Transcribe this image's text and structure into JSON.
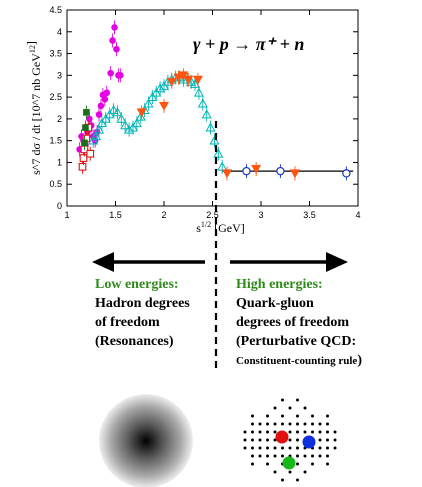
{
  "chart_data": {
    "type": "scatter",
    "xlabel": "s^{1/2} [GeV]",
    "ylabel": "s^7 dσ / dt [10^7 nb GeV^{12}]",
    "annotation": "γ + p → π⁺ + n",
    "xlim": [
      1,
      4
    ],
    "ylim": [
      0,
      4.5
    ],
    "xticks": [
      "1",
      "1.5",
      "2",
      "2.5",
      "3",
      "3.5",
      "4"
    ],
    "yticks": [
      "0",
      "0.5",
      "1",
      "1.5",
      "2",
      "2.5",
      "3",
      "3.5",
      "4",
      "4.5"
    ],
    "grid": false,
    "divider_x": 2.6,
    "fit_line": {
      "x": [
        2.6,
        3.95
      ],
      "y": [
        0.8,
        0.8
      ]
    },
    "series": [
      {
        "marker": "filled-circle",
        "color": "#e600e6",
        "x": [
          1.13,
          1.15,
          1.17,
          1.19,
          1.21,
          1.23,
          1.25,
          1.27,
          1.29,
          1.31,
          1.33,
          1.35,
          1.37,
          1.39,
          1.41,
          1.45,
          1.47,
          1.49,
          1.51,
          1.53,
          1.55
        ],
        "y": [
          1.3,
          1.6,
          1.5,
          1.4,
          1.7,
          2.0,
          1.85,
          1.6,
          1.5,
          1.7,
          2.1,
          2.3,
          2.55,
          2.45,
          2.6,
          3.05,
          3.8,
          4.1,
          3.6,
          3.0,
          3.0
        ]
      },
      {
        "marker": "open-square",
        "color": "#dd1111",
        "x": [
          1.16,
          1.17,
          1.18,
          1.2,
          1.22,
          1.24
        ],
        "y": [
          0.9,
          1.1,
          1.3,
          1.55,
          1.8,
          1.2
        ]
      },
      {
        "marker": "filled-square",
        "color": "#1a6e1a",
        "x": [
          1.18,
          1.19,
          1.2
        ],
        "y": [
          1.45,
          1.8,
          2.15
        ]
      },
      {
        "marker": "open-triangle",
        "color": "#00b5b5",
        "x": [
          1.27,
          1.3,
          1.33,
          1.36,
          1.4,
          1.44,
          1.48,
          1.52,
          1.56,
          1.6,
          1.64,
          1.68,
          1.72,
          1.76,
          1.8,
          1.84,
          1.88,
          1.92,
          1.96,
          2.0,
          2.04,
          2.08,
          2.12,
          2.16,
          2.2,
          2.24,
          2.28,
          2.32,
          2.36,
          2.4,
          2.44,
          2.48,
          2.52,
          2.56,
          2.6
        ],
        "y": [
          1.5,
          1.6,
          1.75,
          1.9,
          2.0,
          2.1,
          2.2,
          2.15,
          2.0,
          1.85,
          1.75,
          1.8,
          1.9,
          2.05,
          2.2,
          2.35,
          2.5,
          2.6,
          2.7,
          2.75,
          2.85,
          2.9,
          2.95,
          2.95,
          2.9,
          2.9,
          2.85,
          2.8,
          2.6,
          2.35,
          2.1,
          1.8,
          1.5,
          1.2,
          0.9
        ]
      },
      {
        "marker": "filled-triangle-down",
        "color": "#ff5511",
        "x": [
          1.77,
          2.0,
          2.08,
          2.15,
          2.2,
          2.25,
          2.35,
          2.65,
          2.95,
          3.35
        ],
        "y": [
          2.15,
          2.3,
          2.85,
          2.95,
          3.0,
          2.9,
          2.9,
          0.75,
          0.85,
          0.75
        ]
      },
      {
        "marker": "open-circle",
        "color": "#1133cc",
        "x": [
          2.85,
          3.2,
          3.88
        ],
        "y": [
          0.8,
          0.8,
          0.75
        ]
      }
    ]
  },
  "left_box": {
    "title": "Low energies:",
    "line1": "Hadron degrees",
    "line2": "of freedom",
    "line3": "(Resonances)"
  },
  "right_box": {
    "title": "High energies:",
    "line1": "Quark-gluon",
    "line2": "degrees of freedom",
    "line3": "(Perturbative QCD:",
    "line4_small": "Constituent-counting rule",
    "line4_close": ")"
  }
}
